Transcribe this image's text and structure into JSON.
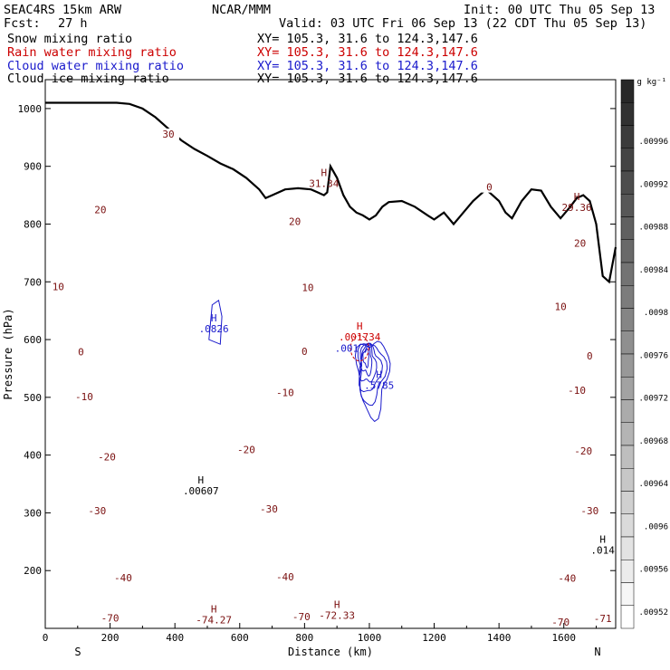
{
  "header": {
    "model": "SEAC4RS 15km ARW",
    "fcst_label": "Fcst:",
    "fcst_value": "27 h",
    "center": "NCAR/MMM",
    "init": "Init: 00 UTC Thu 05 Sep 13",
    "valid": "Valid: 03 UTC Fri 06 Sep 13 (22 CDT Thu 05 Sep 13)",
    "fields": [
      {
        "name": "Snow mixing ratio",
        "xy": "XY= 105.3, 31.6 to 124.3,147.6",
        "color": "#000000"
      },
      {
        "name": "Rain water mixing ratio",
        "xy": "XY= 105.3, 31.6 to 124.3,147.6",
        "color": "#cc0000"
      },
      {
        "name": "Cloud water mixing ratio",
        "xy": "XY= 105.3, 31.6 to 124.3,147.6",
        "color": "#1a1acc"
      },
      {
        "name": "Cloud ice mixing ratio",
        "xy": "XY= 105.3, 31.6 to 124.3,147.6",
        "color": "#000000"
      }
    ]
  },
  "chart_data": {
    "type": "contour cross-section",
    "xlabel": "Distance (km)",
    "ylabel": "Pressure (hPa)",
    "xlim": [
      0,
      1760
    ],
    "ylim": [
      1050,
      100
    ],
    "x_ticks": [
      0,
      200,
      400,
      600,
      800,
      1000,
      1200,
      1400,
      1600
    ],
    "y_ticks": [
      200,
      300,
      400,
      500,
      600,
      700,
      800,
      900,
      1000
    ],
    "endpoint_labels": {
      "left": "S",
      "right": "N"
    },
    "temperature_contours": {
      "color": "#7a1010",
      "interval": 5,
      "labeled": [
        {
          "value": "-70",
          "x": 200,
          "p": 118
        },
        {
          "value": "-70",
          "x": 790,
          "p": 120
        },
        {
          "value": "-70",
          "x": 1590,
          "p": 111
        },
        {
          "value": "-71",
          "x": 1720,
          "p": 117
        },
        {
          "value": "-40",
          "x": 240,
          "p": 188
        },
        {
          "value": "-40",
          "x": 740,
          "p": 189
        },
        {
          "value": "-40",
          "x": 1610,
          "p": 187
        },
        {
          "value": "-30",
          "x": 160,
          "p": 304
        },
        {
          "value": "-30",
          "x": 690,
          "p": 307
        },
        {
          "value": "-30",
          "x": 1680,
          "p": 304
        },
        {
          "value": "-20",
          "x": 190,
          "p": 397
        },
        {
          "value": "-20",
          "x": 620,
          "p": 410
        },
        {
          "value": "-20",
          "x": 1660,
          "p": 407
        },
        {
          "value": "-10",
          "x": 120,
          "p": 501
        },
        {
          "value": "-10",
          "x": 740,
          "p": 508
        },
        {
          "value": "-10",
          "x": 1640,
          "p": 512
        },
        {
          "value": "0",
          "x": 110,
          "p": 579
        },
        {
          "value": "0",
          "x": 800,
          "p": 580
        },
        {
          "value": "0",
          "x": 1680,
          "p": 572
        },
        {
          "value": "10",
          "x": 40,
          "p": 692
        },
        {
          "value": "10",
          "x": 810,
          "p": 690
        },
        {
          "value": "10",
          "x": 1590,
          "p": 657
        },
        {
          "value": "20",
          "x": 170,
          "p": 825
        },
        {
          "value": "20",
          "x": 770,
          "p": 805
        },
        {
          "value": "20",
          "x": 1650,
          "p": 767
        },
        {
          "value": "30",
          "x": 380,
          "p": 956
        },
        {
          "value": "0",
          "x": 1370,
          "p": 864
        }
      ],
      "extrema": [
        {
          "label": "H",
          "value": "-74.27",
          "x": 520,
          "p": 124
        },
        {
          "label": "H",
          "value": "-72.33",
          "x": 900,
          "p": 132
        },
        {
          "label": "H",
          "value": "31.34",
          "x": 860,
          "p": 880
        },
        {
          "label": "H",
          "value": "29.36",
          "x": 1640,
          "p": 838
        }
      ]
    },
    "snow_max": {
      "label": "H",
      "value": ".00607",
      "x": 480,
      "p": 348
    },
    "ice_max": {
      "label": "H",
      "value": ".014",
      "x": 1720,
      "p": 245
    },
    "rain_max": {
      "label": "H",
      "value": ".001734",
      "x": 970,
      "p": 614
    },
    "cloud_water": {
      "color": "#1a1acc",
      "maxima": [
        {
          "label": "H",
          "value": ".5785",
          "x": 1030,
          "p": 530
        },
        {
          "label": "H",
          "value": ".0826",
          "x": 520,
          "p": 628
        }
      ],
      "labels": [
        {
          "value": ".001",
          "x": 930,
          "p": 585
        }
      ]
    },
    "terrain": {
      "color": "#000000",
      "x": [
        0,
        220,
        260,
        300,
        340,
        380,
        420,
        460,
        500,
        540,
        580,
        620,
        660,
        680,
        700,
        740,
        780,
        820,
        840,
        860,
        870,
        880,
        900,
        920,
        940,
        960,
        980,
        1000,
        1020,
        1040,
        1060,
        1100,
        1140,
        1180,
        1200,
        1230,
        1260,
        1290,
        1320,
        1360,
        1380,
        1400,
        1420,
        1440,
        1470,
        1500,
        1530,
        1560,
        1590,
        1620,
        1640,
        1660,
        1680,
        1700,
        1720,
        1740,
        1760
      ],
      "p": [
        1010,
        1010,
        1008,
        1000,
        985,
        965,
        945,
        930,
        918,
        905,
        895,
        880,
        860,
        845,
        850,
        860,
        862,
        860,
        855,
        850,
        855,
        900,
        880,
        850,
        830,
        820,
        815,
        808,
        815,
        830,
        838,
        840,
        830,
        815,
        808,
        820,
        800,
        820,
        840,
        860,
        850,
        840,
        820,
        810,
        840,
        860,
        858,
        830,
        810,
        830,
        845,
        850,
        840,
        800,
        710,
        700,
        760
      ]
    },
    "colorbar": {
      "unit": "g kg⁻¹",
      "ticks": [
        ".00996",
        ".00992",
        ".00988",
        ".00984",
        ".0098",
        ".00976",
        ".00972",
        ".00968",
        ".00964",
        ".0096",
        ".00956",
        ".00952"
      ]
    }
  }
}
